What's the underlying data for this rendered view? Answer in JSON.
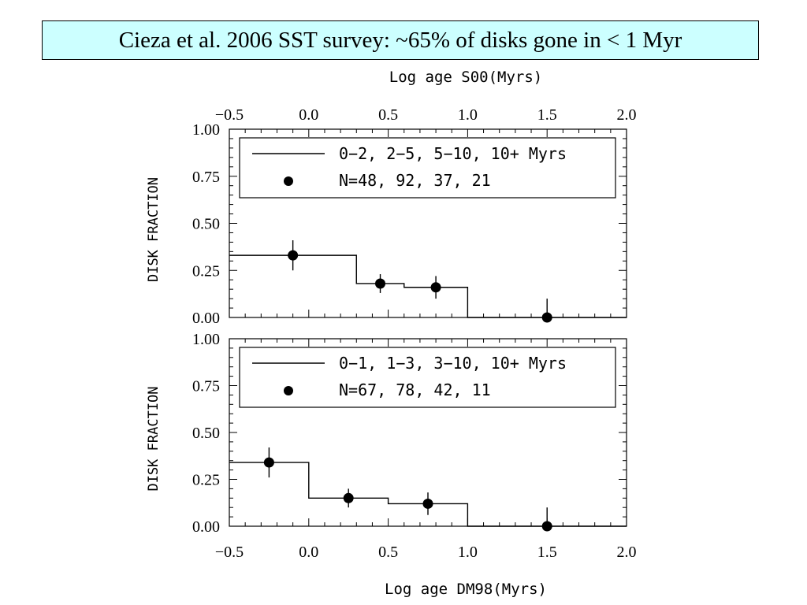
{
  "title": "Cieza et al. 2006 SST survey: ~65% of disks gone in < 1 Myr",
  "chart_data": [
    {
      "type": "line",
      "panel": "top",
      "x_axis_label": "Log age S00(Myrs)",
      "x_axis_position": "top",
      "ylabel": "DISK FRACTION",
      "xlim": [
        -0.5,
        2.0
      ],
      "ylim": [
        0.0,
        1.0
      ],
      "x_ticks": [
        "−0.5",
        "0.0",
        "0.5",
        "1.0",
        "1.5",
        "2.0"
      ],
      "y_ticks": [
        "0.00",
        "0.25",
        "0.50",
        "0.75",
        "1.00"
      ],
      "legend_position": "top",
      "legend": {
        "line": "0−2, 2−5, 5−10, 10+ Myrs",
        "points": "N=48, 92, 37, 21"
      },
      "step": [
        [
          -0.5,
          0.3,
          0.33
        ],
        [
          0.3,
          0.6,
          0.18
        ],
        [
          0.6,
          1.0,
          0.16
        ],
        [
          1.0,
          2.0,
          0.0
        ]
      ],
      "points": [
        {
          "x": -0.1,
          "y": 0.33,
          "err": 0.08
        },
        {
          "x": 0.45,
          "y": 0.18,
          "err": 0.05
        },
        {
          "x": 0.8,
          "y": 0.16,
          "err": 0.06
        },
        {
          "x": 1.5,
          "y": 0.0,
          "err": 0.1
        }
      ]
    },
    {
      "type": "line",
      "panel": "bottom",
      "x_axis_label": "Log age DM98(Myrs)",
      "x_axis_position": "bottom",
      "ylabel": "DISK FRACTION",
      "xlim": [
        -0.5,
        2.0
      ],
      "ylim": [
        0.0,
        1.0
      ],
      "x_ticks": [
        "−0.5",
        "0.0",
        "0.5",
        "1.0",
        "1.5",
        "2.0"
      ],
      "y_ticks": [
        "0.00",
        "0.25",
        "0.50",
        "0.75",
        "1.00"
      ],
      "legend_position": "top",
      "legend": {
        "line": "0−1, 1−3, 3−10, 10+ Myrs",
        "points": "N=67, 78, 42, 11"
      },
      "step": [
        [
          -0.5,
          0.0,
          0.34
        ],
        [
          0.0,
          0.5,
          0.15
        ],
        [
          0.5,
          1.0,
          0.12
        ],
        [
          1.0,
          2.0,
          0.0
        ]
      ],
      "points": [
        {
          "x": -0.25,
          "y": 0.34,
          "err": 0.08
        },
        {
          "x": 0.25,
          "y": 0.15,
          "err": 0.05
        },
        {
          "x": 0.75,
          "y": 0.12,
          "err": 0.06
        },
        {
          "x": 1.5,
          "y": 0.0,
          "err": 0.1
        }
      ]
    }
  ]
}
